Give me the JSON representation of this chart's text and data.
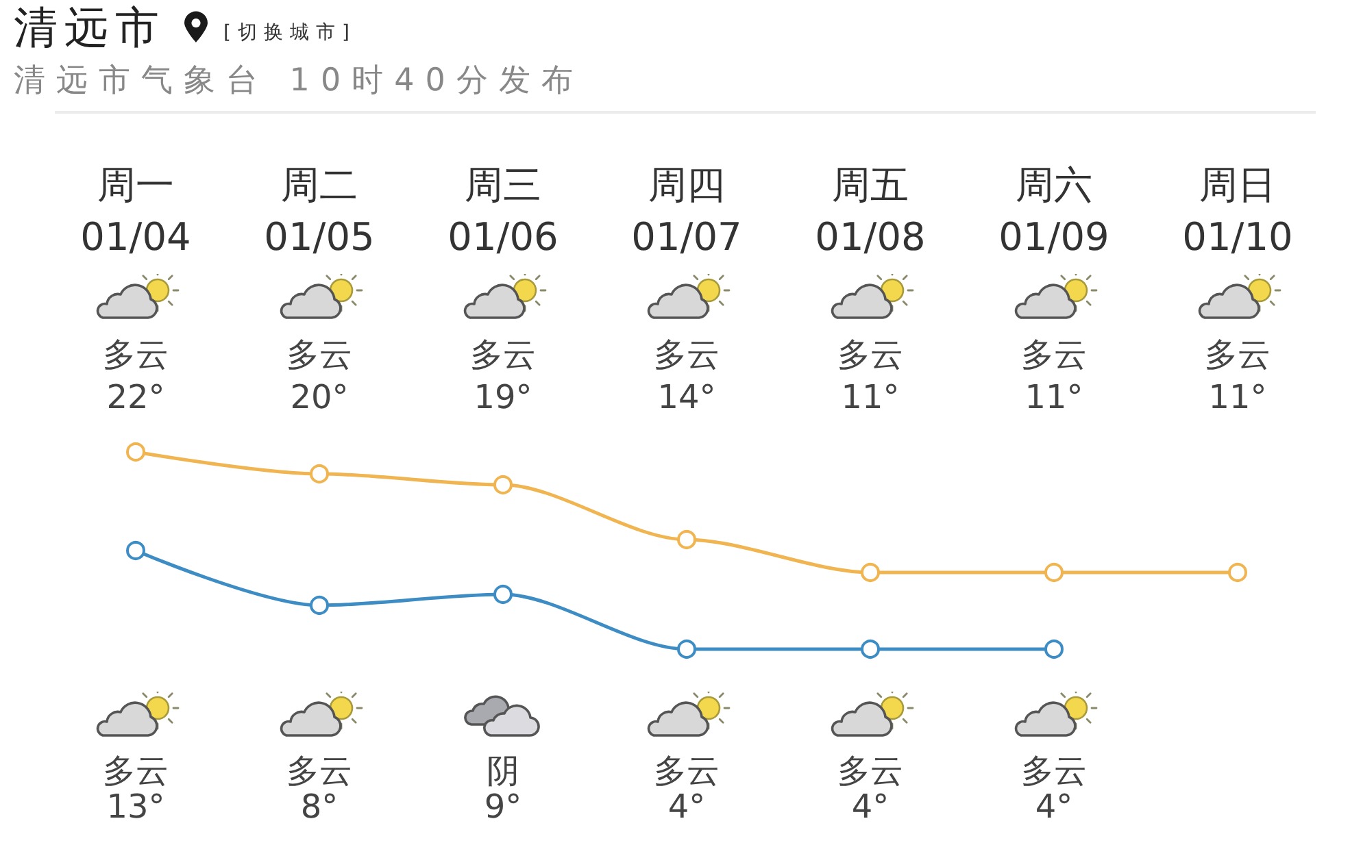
{
  "chart_data": {
    "type": "line",
    "title": "清远市",
    "subtitle": "清远市气象台 10时40分发布",
    "categories": [
      "周一\n01/04",
      "周二\n01/05",
      "周三\n01/06",
      "周四\n01/07",
      "周五\n01/08",
      "周六\n01/09",
      "周日\n01/10"
    ],
    "series": [
      {
        "color": "#f0b450",
        "values": [
          22,
          20,
          19,
          14,
          11,
          11,
          11
        ],
        "value_labels": [
          "22°",
          "20°",
          "19°",
          "14°",
          "11°",
          "11°",
          "11°"
        ]
      },
      {
        "color": "#3d8dc4",
        "values": [
          13,
          8,
          9,
          4,
          4,
          4,
          null
        ],
        "value_labels": [
          "13°",
          "8°",
          "9°",
          "4°",
          "4°",
          "4°",
          null
        ]
      }
    ],
    "tick_labels": "x",
    "marker": "circle",
    "line_style": "solid",
    "annotations": [
      "[切换城市]",
      "多云",
      "多云",
      "多云",
      "多云",
      "多云",
      "多云",
      "多云",
      "多云",
      "多云",
      "阴",
      "多云",
      "多云",
      "多云"
    ]
  }
}
